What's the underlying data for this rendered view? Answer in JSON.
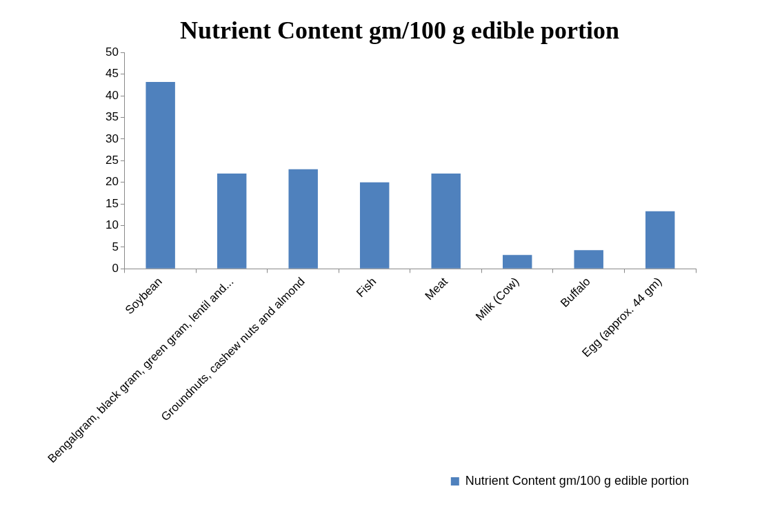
{
  "chart_data": {
    "type": "bar",
    "title": "Nutrient Content gm/100 g edible portion",
    "categories": [
      "Soybean",
      "Bengalgram, black gram, green gram, lentil and...",
      "Groundnuts, cashew nuts and almond",
      "Fish",
      "Meat",
      "Milk (Cow)",
      "Buffalo",
      "Egg (approx. 44 gm)"
    ],
    "series": [
      {
        "name": "Nutrient Content gm/100 g edible portion",
        "color": "#4f81bd",
        "values": [
          43.2,
          22,
          23,
          20,
          22,
          3.2,
          4.3,
          13.3
        ]
      }
    ],
    "ylim": [
      0,
      50
    ],
    "yticks": [
      0,
      5,
      10,
      15,
      20,
      25,
      30,
      35,
      40,
      45,
      50
    ],
    "grid": false,
    "legend": "bottom right"
  }
}
